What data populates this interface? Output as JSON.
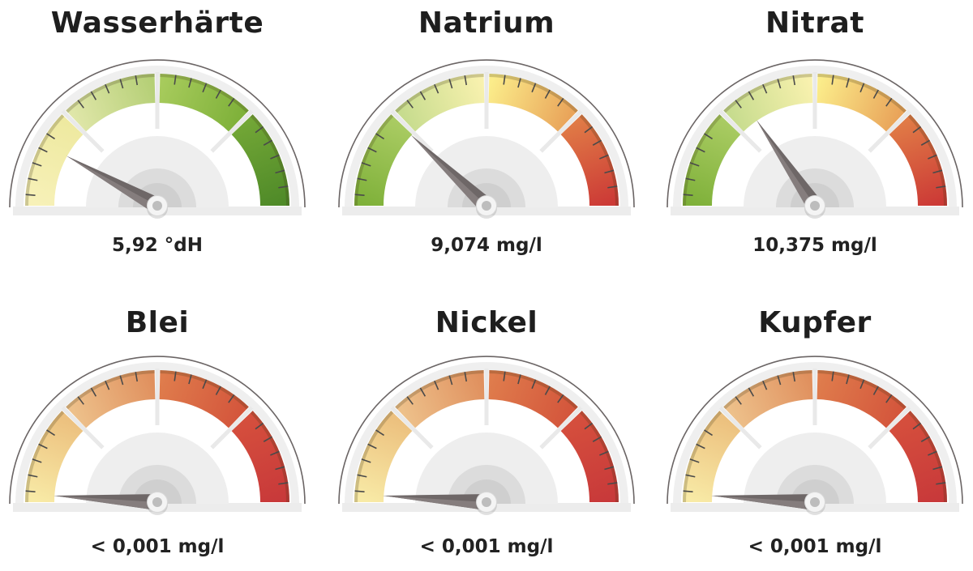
{
  "chart_data": [
    {
      "type": "gauge",
      "title": "Wasserhärte",
      "value_label": "5,92 °dH",
      "needle_fraction": 0.16,
      "segments": [
        [
          "#f7f1b8",
          "#eee9a0"
        ],
        [
          "#dfe6a8",
          "#b5cf76"
        ],
        [
          "#a7cb5c",
          "#7fb13a"
        ],
        [
          "#72a636",
          "#4f8a28"
        ]
      ]
    },
    {
      "type": "gauge",
      "title": "Natrium",
      "value_label": "9,074 mg/l",
      "needle_fraction": 0.24,
      "segments": [
        [
          "#7fb13a",
          "#a9cb62"
        ],
        [
          "#c7dc8e",
          "#f8f1ae"
        ],
        [
          "#fbec8a",
          "#e9a45a"
        ],
        [
          "#e07a46",
          "#cc3a36"
        ]
      ]
    },
    {
      "type": "gauge",
      "title": "Nitrat",
      "value_label": "10,375 mg/l",
      "needle_fraction": 0.31,
      "segments": [
        [
          "#7fb13a",
          "#a9cb62"
        ],
        [
          "#c7dc8e",
          "#f8f1ae"
        ],
        [
          "#fbec8a",
          "#e9a45a"
        ],
        [
          "#e07a46",
          "#cc3a36"
        ]
      ]
    },
    {
      "type": "gauge",
      "title": "Blei",
      "value_label": "< 0,001 mg/l",
      "needle_fraction": 0.02,
      "segments": [
        [
          "#f8eaa6",
          "#ecc07e"
        ],
        [
          "#edc08a",
          "#e0905e"
        ],
        [
          "#df7c4c",
          "#d4563c"
        ],
        [
          "#d54f3d",
          "#c8393a"
        ]
      ]
    },
    {
      "type": "gauge",
      "title": "Nickel",
      "value_label": "< 0,001 mg/l",
      "needle_fraction": 0.02,
      "segments": [
        [
          "#f8eaa6",
          "#ecc07e"
        ],
        [
          "#edc08a",
          "#e0905e"
        ],
        [
          "#df7c4c",
          "#d4563c"
        ],
        [
          "#d54f3d",
          "#c8393a"
        ]
      ]
    },
    {
      "type": "gauge",
      "title": "Kupfer",
      "value_label": "< 0,001 mg/l",
      "needle_fraction": 0.02,
      "segments": [
        [
          "#f8eaa6",
          "#ecc07e"
        ],
        [
          "#edc08a",
          "#e0905e"
        ],
        [
          "#df7c4c",
          "#d4563c"
        ],
        [
          "#d54f3d",
          "#c8393a"
        ]
      ]
    }
  ]
}
